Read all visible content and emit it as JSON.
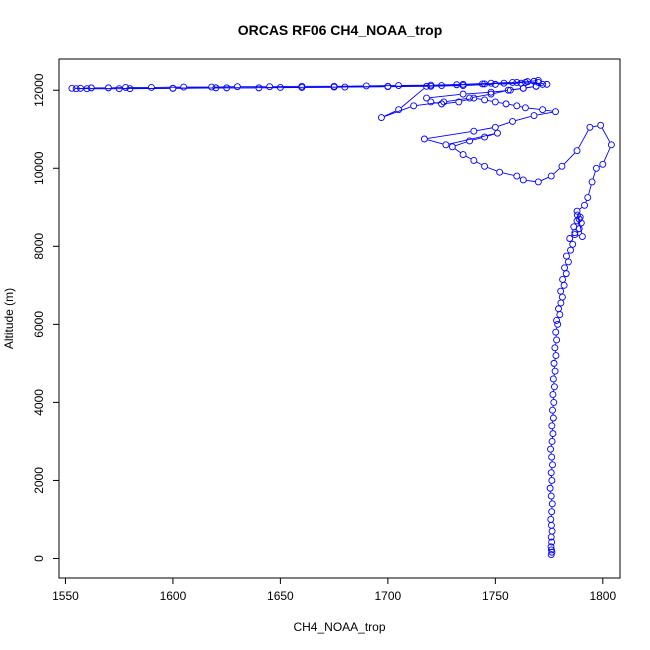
{
  "chart_data": {
    "type": "line",
    "title": "ORCAS RF06 CH4_NOAA_trop",
    "xlabel": "CH4_NOAA_trop",
    "ylabel": "Altitude (m)",
    "xlim": [
      1547,
      1808
    ],
    "ylim": [
      -500,
      12800
    ],
    "xticks": [
      1550,
      1600,
      1650,
      1700,
      1750,
      1800
    ],
    "yticks": [
      0,
      2000,
      4000,
      6000,
      8000,
      10000,
      12000
    ],
    "grid": false,
    "marker": "open-circle",
    "colors": {
      "series": "#0000ff"
    },
    "series": [
      {
        "x": [
          1776.0,
          1776.3,
          1776.1,
          1775.9,
          1776.2,
          1776.0,
          1776.4,
          1776.1,
          1775.8,
          1776.2,
          1776.5,
          1776.0,
          1775.5,
          1776.3,
          1776.0,
          1776.6,
          1776.2,
          1775.7,
          1776.4,
          1776.8,
          1776.3,
          1777.0,
          1776.6,
          1777.2,
          1776.8,
          1777.5,
          1777.0,
          1777.8,
          1777.3,
          1778.2,
          1777.7,
          1778.5,
          1778.1,
          1779.0,
          1778.5,
          1780.0,
          1779.4,
          1780.5,
          1781.2,
          1780.4,
          1782.0,
          1781.3,
          1783.0,
          1782.2,
          1784.0,
          1783.1,
          1785.0,
          1786.0,
          1784.6,
          1787.0,
          1786.5,
          1788.0,
          1789.0,
          1788.2,
          1789.5,
          1790.0,
          1789.0,
          1787.0,
          1790.5,
          1788.0,
          1791.5,
          1793.0,
          1795.0,
          1797.0,
          1800.0,
          1804.0,
          1799.0,
          1794.0,
          1788.0,
          1781.0,
          1776.0,
          1770.0,
          1763.0,
          1760.0,
          1752.0,
          1745.0,
          1740.0,
          1735.0,
          1730.0,
          1738.0,
          1745.0,
          1751.0,
          1727.0,
          1717.0,
          1740.0,
          1750.0,
          1758.0,
          1768.0,
          1778.0,
          1772.0,
          1764.0,
          1760.0,
          1755.0,
          1750.0,
          1745.0,
          1740.0,
          1733.0,
          1725.0,
          1720.0,
          1718.0,
          1735.0,
          1748.0,
          1757.0,
          1763.0,
          1769.0,
          1772.0,
          1764.0,
          1754.0,
          1744.0,
          1732.0,
          1718.0,
          1705.0,
          1697.0,
          1712.0,
          1726.0,
          1738.0,
          1748.0,
          1756.0,
          1763.0,
          1769.0,
          1774.0,
          1770.0,
          1762.0,
          1750.0,
          1735.0,
          1720.0,
          1700.0,
          1680.0,
          1660.0,
          1640.0,
          1620.0,
          1600.0,
          1580.0,
          1560.0,
          1553.0,
          1557.0,
          1562.0,
          1570.0,
          1578.0,
          1590.0,
          1605.0,
          1618.0,
          1630.0,
          1645.0,
          1660.0,
          1675.0,
          1690.0,
          1705.0,
          1720.0,
          1735.0,
          1748.0,
          1758.0,
          1765.0,
          1770.0,
          1768.0,
          1760.0,
          1745.0,
          1725.0,
          1700.0,
          1675.0,
          1650.0,
          1625.0,
          1600.0,
          1575.0,
          1555.0
        ],
        "y": [
          100,
          160,
          220,
          300,
          420,
          550,
          700,
          850,
          1000,
          1200,
          1400,
          1600,
          1800,
          2000,
          2200,
          2400,
          2600,
          2800,
          3000,
          3200,
          3400,
          3600,
          3800,
          4000,
          4200,
          4400,
          4600,
          4800,
          5000,
          5200,
          5400,
          5600,
          5800,
          6000,
          6100,
          6250,
          6400,
          6550,
          6700,
          6850,
          7000,
          7150,
          7300,
          7450,
          7600,
          7750,
          7900,
          8050,
          8200,
          8350,
          8500,
          8650,
          8700,
          8800,
          8750,
          8600,
          8450,
          8300,
          8250,
          8900,
          9050,
          9250,
          9650,
          10000,
          10100,
          10600,
          11100,
          11050,
          10450,
          10050,
          9800,
          9650,
          9700,
          9800,
          9900,
          10050,
          10200,
          10350,
          10550,
          10700,
          10800,
          10900,
          10600,
          10750,
          10950,
          11050,
          11200,
          11350,
          11450,
          11500,
          11550,
          11600,
          11650,
          11700,
          11750,
          11800,
          11700,
          11650,
          11700,
          11800,
          11900,
          11950,
          12000,
          12050,
          12100,
          12150,
          12200,
          12180,
          12160,
          12140,
          12100,
          11500,
          11300,
          11600,
          11700,
          11800,
          11900,
          12000,
          12050,
          12100,
          12150,
          12200,
          12180,
          12150,
          12120,
          12100,
          12090,
          12080,
          12070,
          12060,
          12060,
          12050,
          12040,
          12040,
          12050,
          12050,
          12060,
          12060,
          12070,
          12070,
          12080,
          12080,
          12090,
          12090,
          12100,
          12100,
          12110,
          12120,
          12130,
          12150,
          12180,
          12200,
          12220,
          12250,
          12230,
          12200,
          12160,
          12120,
          12100,
          12080,
          12070,
          12060,
          12050,
          12040,
          12040
        ]
      }
    ]
  }
}
